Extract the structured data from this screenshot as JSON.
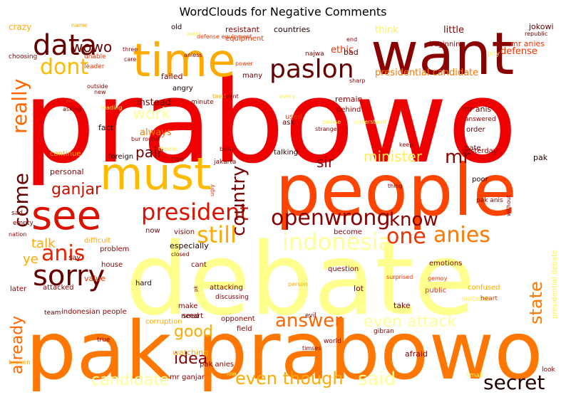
{
  "title": "WordClouds for Negative Comments",
  "words": [
    {
      "text": "prabowo",
      "color": "#ee0000"
    },
    {
      "text": "debate",
      "color": "#ffff88"
    },
    {
      "text": "pak prabowo",
      "color": "#ff7700"
    },
    {
      "text": "people",
      "color": "#ff4400"
    },
    {
      "text": "want",
      "color": "#8b0000"
    },
    {
      "text": "must",
      "color": "#ffbb00"
    },
    {
      "text": "time",
      "color": "#ffaa00"
    },
    {
      "text": "see",
      "color": "#dd1100"
    },
    {
      "text": "data",
      "color": "#660000"
    },
    {
      "text": "paslon",
      "color": "#660000"
    },
    {
      "text": "dont",
      "color": "#ffbb00"
    },
    {
      "text": "president",
      "color": "#dd1100"
    },
    {
      "text": "openwrong",
      "color": "#880000"
    },
    {
      "text": "country",
      "color": "#770000"
    },
    {
      "text": "sorry",
      "color": "#660000"
    },
    {
      "text": "anis",
      "color": "#ee2200"
    },
    {
      "text": "really",
      "color": "#ff6600"
    },
    {
      "text": "indonesia",
      "color": "#ffff99"
    },
    {
      "text": "anies",
      "color": "#ff7700"
    },
    {
      "text": "one",
      "color": "#ee3300"
    },
    {
      "text": "still",
      "color": "#ffaa00"
    },
    {
      "text": "know",
      "color": "#880000"
    },
    {
      "text": "come",
      "color": "#660000"
    },
    {
      "text": "work",
      "color": "#ffff99"
    },
    {
      "text": "ganjar",
      "color": "#cc1100"
    },
    {
      "text": "wowo",
      "color": "#660000"
    },
    {
      "text": "minister",
      "color": "#ffee55"
    },
    {
      "text": "mr",
      "color": "#880000"
    },
    {
      "text": "sir",
      "color": "#880000"
    },
    {
      "text": "pair",
      "color": "#660000"
    },
    {
      "text": "answer",
      "color": "#ff6600"
    },
    {
      "text": "even attack",
      "color": "#ffff99"
    },
    {
      "text": "even though",
      "color": "#ffaa00"
    },
    {
      "text": "secret",
      "color": "#220000"
    },
    {
      "text": "state",
      "color": "#ff7700"
    },
    {
      "text": "already",
      "color": "#ff6600"
    },
    {
      "text": "good",
      "color": "#ffaa00"
    },
    {
      "text": "idea",
      "color": "#880000"
    },
    {
      "text": "candidate",
      "color": "#ffff99"
    },
    {
      "text": "said",
      "color": "#ffff99"
    },
    {
      "text": "talk",
      "color": "#ffaa00"
    },
    {
      "text": "ye",
      "color": "#ffaa00"
    },
    {
      "text": "presidential candidate",
      "color": "#ff7700"
    },
    {
      "text": "defense",
      "color": "#ee3300"
    },
    {
      "text": "ethic",
      "color": "#ee3300"
    },
    {
      "text": "bad",
      "color": "#660000"
    },
    {
      "text": "think",
      "color": "#ffee55"
    },
    {
      "text": "little",
      "color": "#880000"
    },
    {
      "text": "beginning",
      "color": "#880000"
    },
    {
      "text": "jokowi",
      "color": "#660000"
    },
    {
      "text": "crazy",
      "color": "#ffaa00"
    },
    {
      "text": "countries",
      "color": "#220000"
    },
    {
      "text": "resistant",
      "color": "#880000"
    },
    {
      "text": "equipment",
      "color": "#ee3300"
    },
    {
      "text": "defense equipment",
      "color": "#ee3300"
    },
    {
      "text": "old",
      "color": "#220000"
    },
    {
      "text": "mr anies",
      "color": "#ee3300"
    },
    {
      "text": "republic",
      "color": "#660000"
    },
    {
      "text": "pity",
      "color": "#ffee55"
    },
    {
      "text": "always",
      "color": "#ff7700"
    },
    {
      "text": "fact",
      "color": "#220000"
    },
    {
      "text": "instead",
      "color": "#660000"
    },
    {
      "text": "failed",
      "color": "#880000"
    },
    {
      "text": "angry",
      "color": "#220000"
    },
    {
      "text": "many",
      "color": "#660000"
    },
    {
      "text": "remain",
      "color": "#880000"
    },
    {
      "text": "behind",
      "color": "#880000"
    },
    {
      "text": "used",
      "color": "#ee3300"
    },
    {
      "text": "ask",
      "color": "#660000"
    },
    {
      "text": "mr anis",
      "color": "#660000"
    },
    {
      "text": "answered",
      "color": "#880000"
    },
    {
      "text": "order",
      "color": "#660000"
    },
    {
      "text": "yesterday",
      "color": "#880000"
    },
    {
      "text": "hate",
      "color": "#660000"
    },
    {
      "text": "pak",
      "color": "#220000"
    },
    {
      "text": "poor",
      "color": "#220000"
    },
    {
      "text": "pak anis",
      "color": "#880000"
    },
    {
      "text": "talking",
      "color": "#220000"
    },
    {
      "text": "jakarta",
      "color": "#880000"
    },
    {
      "text": "foreign",
      "color": "#220000"
    },
    {
      "text": "continue",
      "color": "#ffaa00"
    },
    {
      "text": "personal",
      "color": "#880000"
    },
    {
      "text": "two",
      "color": "#880000"
    },
    {
      "text": "especially",
      "color": "#220000"
    },
    {
      "text": "difficult",
      "color": "#ffaa00"
    },
    {
      "text": "problem",
      "color": "#880000"
    },
    {
      "text": "say",
      "color": "#880000"
    },
    {
      "text": "value",
      "color": "#ee3300"
    },
    {
      "text": "house",
      "color": "#880000"
    },
    {
      "text": "hard",
      "color": "#220000"
    },
    {
      "text": "cant",
      "color": "#880000"
    },
    {
      "text": "attacking",
      "color": "#880000"
    },
    {
      "text": "discussing",
      "color": "#880000"
    },
    {
      "text": "make",
      "color": "#880000"
    },
    {
      "text": "need",
      "color": "#880000"
    },
    {
      "text": "smart",
      "color": "#660000"
    },
    {
      "text": "opponent",
      "color": "#880000"
    },
    {
      "text": "field",
      "color": "#880000"
    },
    {
      "text": "lot",
      "color": "#880000"
    },
    {
      "text": "take",
      "color": "#880000"
    },
    {
      "text": "public",
      "color": "#ee3300"
    },
    {
      "text": "confused",
      "color": "#ffaa00"
    },
    {
      "text": "suitable",
      "color": "#ffee55"
    },
    {
      "text": "heart",
      "color": "#ee3300"
    },
    {
      "text": "emotions",
      "color": "#880000"
    },
    {
      "text": "question",
      "color": "#880000"
    },
    {
      "text": "become",
      "color": "#880000"
    },
    {
      "text": "now",
      "color": "#880000"
    },
    {
      "text": "vision",
      "color": "#880000"
    },
    {
      "text": "team",
      "color": "#660000"
    },
    {
      "text": "indonesian people",
      "color": "#880000"
    },
    {
      "text": "attacked",
      "color": "#880000"
    },
    {
      "text": "later",
      "color": "#880000"
    },
    {
      "text": "watching",
      "color": "#ffaa00"
    },
    {
      "text": "corruption",
      "color": "#ffaa00"
    },
    {
      "text": "pak anies",
      "color": "#880000"
    },
    {
      "text": "mr ganjar",
      "color": "#880000"
    },
    {
      "text": "afraid",
      "color": "#880000"
    },
    {
      "text": "gibran",
      "color": "#880000"
    },
    {
      "text": "evil",
      "color": "#880000"
    },
    {
      "text": "world",
      "color": "#880000"
    },
    {
      "text": "timses",
      "color": "#880000"
    },
    {
      "text": "true",
      "color": "#880000"
    },
    {
      "text": "broken",
      "color": "#ffaa00"
    },
    {
      "text": "small",
      "color": "#ffee55"
    },
    {
      "text": "look",
      "color": "#880000"
    },
    {
      "text": "presidential debate",
      "color": "#ffee55"
    },
    {
      "text": "sad",
      "color": "#880000"
    },
    {
      "text": "empty",
      "color": "#880000"
    },
    {
      "text": "nation",
      "color": "#880000"
    },
    {
      "text": "win",
      "color": "#ee3300"
    },
    {
      "text": "asking",
      "color": "#880000"
    },
    {
      "text": "choosing",
      "color": "#880000"
    },
    {
      "text": "unable",
      "color": "#ee3300"
    },
    {
      "text": "leader",
      "color": "#ee3300"
    },
    {
      "text": "care",
      "color": "#880000"
    },
    {
      "text": "three",
      "color": "#880000"
    },
    {
      "text": "new",
      "color": "#880000"
    },
    {
      "text": "outside",
      "color": "#880000"
    },
    {
      "text": "minute",
      "color": "#880000"
    },
    {
      "text": "tired",
      "color": "#ffaa00"
    },
    {
      "text": "bur round",
      "color": "#880000"
    },
    {
      "text": "theme",
      "color": "#ffee55"
    },
    {
      "text": "bowo",
      "color": "#880000"
    },
    {
      "text": "strange",
      "color": "#880000"
    },
    {
      "text": "keep",
      "color": "#880000"
    },
    {
      "text": "sharp",
      "color": "#880000"
    },
    {
      "text": "najwa",
      "color": "#880000"
    },
    {
      "text": "end",
      "color": "#880000"
    },
    {
      "text": "aniess",
      "color": "#880000"
    },
    {
      "text": "thing",
      "color": "#880000"
    },
    {
      "text": "without",
      "color": "#880000"
    },
    {
      "text": "ugly",
      "color": "#ee3300"
    },
    {
      "text": "closed",
      "color": "#880000"
    },
    {
      "text": "power",
      "color": "#ee3300"
    },
    {
      "text": "name",
      "color": "#ffaa00"
    },
    {
      "text": "understand",
      "color": "#ffee55"
    },
    {
      "text": "every",
      "color": "#ffee55"
    },
    {
      "text": "leading",
      "color": "#ffee55"
    },
    {
      "text": "weak",
      "color": "#ffee55"
    },
    {
      "text": "please",
      "color": "#ffee55"
    },
    {
      "text": "gemoy",
      "color": "#ee3300"
    },
    {
      "text": "surprised",
      "color": "#ee3300"
    },
    {
      "text": "person",
      "color": "#ffaa00"
    },
    {
      "text": "low",
      "color": "#ffee55"
    },
    {
      "text": "event",
      "color": "#880000"
    },
    {
      "text": "pk",
      "color": "#880000"
    },
    {
      "text": "complicated",
      "color": "#ffee55"
    }
  ]
}
